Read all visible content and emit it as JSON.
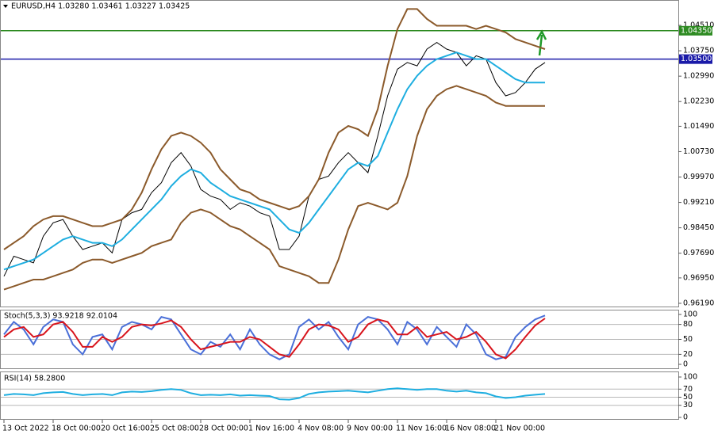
{
  "chart_data": [
    {
      "type": "line",
      "title": "EURUSD,H4  1.03280 1.03461 1.03227 1.03425",
      "categories": [
        "13 Oct 2022",
        null,
        null,
        null,
        null,
        "18 Oct 00:00",
        null,
        null,
        null,
        null,
        "20 Oct 16:00",
        null,
        null,
        null,
        null,
        "25 Oct 08:00",
        null,
        null,
        null,
        null,
        "28 Oct 00:00",
        null,
        null,
        null,
        null,
        "1 Nov 16:00",
        null,
        null,
        null,
        null,
        "4 Nov 08:00",
        null,
        null,
        null,
        null,
        "9 Nov 00:00",
        null,
        null,
        null,
        null,
        "11 Nov 16:00",
        null,
        null,
        null,
        null,
        "16 Nov 08:00",
        null,
        null,
        null,
        null,
        "21 Nov 00:00",
        null,
        null,
        null,
        null,
        null
      ],
      "series": [
        {
          "color": "#000000",
          "values": [
            0.97,
            0.976,
            0.975,
            0.974,
            0.982,
            0.986,
            0.987,
            0.982,
            0.978,
            0.979,
            0.98,
            0.977,
            0.987,
            0.989,
            0.99,
            0.995,
            0.998,
            1.004,
            1.007,
            1.003,
            0.996,
            0.994,
            0.993,
            0.99,
            0.992,
            0.991,
            0.989,
            0.988,
            0.978,
            0.978,
            0.982,
            0.994,
            0.999,
            1.0,
            1.004,
            1.007,
            1.004,
            1.001,
            1.012,
            1.024,
            1.032,
            1.034,
            1.033,
            1.038,
            1.04,
            1.038,
            1.037,
            1.033,
            1.036,
            1.035,
            1.028,
            1.024,
            1.025,
            1.028,
            1.032,
            1.034
          ]
        },
        {
          "color": "#1eaee0",
          "values": [
            0.972,
            0.973,
            0.974,
            0.975,
            0.977,
            0.979,
            0.981,
            0.982,
            0.981,
            0.98,
            0.98,
            0.979,
            0.981,
            0.984,
            0.987,
            0.99,
            0.993,
            0.997,
            1.0,
            1.002,
            1.001,
            0.998,
            0.996,
            0.994,
            0.993,
            0.992,
            0.991,
            0.99,
            0.987,
            0.984,
            0.983,
            0.986,
            0.99,
            0.994,
            0.998,
            1.002,
            1.004,
            1.003,
            1.006,
            1.013,
            1.02,
            1.026,
            1.03,
            1.033,
            1.035,
            1.036,
            1.037,
            1.036,
            1.035,
            1.035,
            1.033,
            1.031,
            1.029,
            1.028,
            1.028,
            1.028
          ]
        },
        {
          "color": "#8b5a2b",
          "values": [
            0.978,
            0.98,
            0.982,
            0.985,
            0.987,
            0.988,
            0.988,
            0.987,
            0.986,
            0.985,
            0.985,
            0.986,
            0.987,
            0.99,
            0.995,
            1.002,
            1.008,
            1.012,
            1.013,
            1.012,
            1.01,
            1.007,
            1.002,
            0.999,
            0.996,
            0.995,
            0.993,
            0.992,
            0.991,
            0.99,
            0.991,
            0.994,
            0.999,
            1.007,
            1.013,
            1.015,
            1.014,
            1.012,
            1.02,
            1.033,
            1.044,
            1.05,
            1.05,
            1.047,
            1.045,
            1.045,
            1.045,
            1.045,
            1.044,
            1.045,
            1.044,
            1.043,
            1.041,
            1.04,
            1.039,
            1.038
          ]
        },
        {
          "color": "#8b5a2b",
          "values": [
            0.966,
            0.967,
            0.968,
            0.969,
            0.969,
            0.97,
            0.971,
            0.972,
            0.974,
            0.975,
            0.975,
            0.974,
            0.975,
            0.976,
            0.977,
            0.979,
            0.98,
            0.981,
            0.986,
            0.989,
            0.99,
            0.989,
            0.987,
            0.985,
            0.984,
            0.982,
            0.98,
            0.978,
            0.973,
            0.972,
            0.971,
            0.97,
            0.968,
            0.968,
            0.975,
            0.984,
            0.991,
            0.992,
            0.991,
            0.99,
            0.992,
            1.0,
            1.012,
            1.02,
            1.024,
            1.026,
            1.027,
            1.026,
            1.025,
            1.024,
            1.022,
            1.021,
            1.021,
            1.021,
            1.021,
            1.021
          ]
        }
      ],
      "ylim": [
        0.9607,
        1.0527
      ],
      "yticks": [
        {
          "value": 0.9619,
          "label": "0.96190"
        },
        {
          "value": 0.9695,
          "label": "0.96950"
        },
        {
          "value": 0.9769,
          "label": "0.97690"
        },
        {
          "value": 0.9845,
          "label": "0.98450"
        },
        {
          "value": 0.9921,
          "label": "0.99210"
        },
        {
          "value": 0.9997,
          "label": "0.99970"
        },
        {
          "value": 1.0073,
          "label": "1.00730"
        },
        {
          "value": 1.0149,
          "label": "1.01490"
        },
        {
          "value": 1.0223,
          "label": "1.02230"
        },
        {
          "value": 1.0299,
          "label": "1.02990"
        },
        {
          "value": 1.0375,
          "label": "1.03750"
        },
        {
          "value": 1.0451,
          "label": "1.04510"
        }
      ],
      "levels": [
        {
          "value": 1.0435,
          "label": "1.04350",
          "color": "#2e8b22"
        },
        {
          "value": 1.035,
          "label": "1.03500",
          "color": "#1a1aa8"
        }
      ]
    },
    {
      "type": "line",
      "title": "Stoch(5,3,3) 93.9218 92.0104",
      "series": [
        {
          "color": "#4a6fd8",
          "values": [
            60,
            85,
            70,
            40,
            75,
            90,
            85,
            40,
            20,
            55,
            60,
            30,
            75,
            85,
            80,
            70,
            95,
            90,
            60,
            30,
            20,
            45,
            35,
            60,
            30,
            70,
            40,
            20,
            10,
            20,
            75,
            90,
            70,
            85,
            55,
            30,
            80,
            95,
            90,
            70,
            40,
            85,
            70,
            40,
            75,
            55,
            35,
            80,
            60,
            20,
            10,
            15,
            55,
            75,
            90,
            98
          ]
        },
        {
          "color": "#d8141c",
          "values": [
            55,
            70,
            75,
            55,
            60,
            80,
            85,
            65,
            35,
            35,
            55,
            45,
            55,
            75,
            80,
            78,
            82,
            88,
            75,
            50,
            30,
            35,
            40,
            45,
            45,
            55,
            50,
            35,
            20,
            15,
            40,
            70,
            80,
            78,
            70,
            45,
            55,
            80,
            90,
            85,
            60,
            60,
            75,
            55,
            60,
            65,
            50,
            55,
            65,
            45,
            20,
            12,
            30,
            55,
            78,
            92
          ]
        }
      ],
      "ylim": [
        0,
        100
      ],
      "yticks": [
        0,
        20,
        50,
        80,
        100
      ]
    },
    {
      "type": "line",
      "title": "RSI(14) 58.2800",
      "series": [
        {
          "color": "#1eaee0",
          "values": [
            55,
            58,
            57,
            55,
            60,
            62,
            63,
            58,
            55,
            57,
            58,
            55,
            62,
            64,
            63,
            65,
            68,
            70,
            68,
            60,
            55,
            56,
            55,
            57,
            54,
            55,
            54,
            53,
            45,
            44,
            48,
            58,
            62,
            64,
            65,
            66,
            64,
            62,
            66,
            70,
            72,
            70,
            68,
            70,
            70,
            66,
            64,
            66,
            62,
            60,
            52,
            48,
            50,
            54,
            56,
            58
          ]
        }
      ],
      "ylim": [
        0,
        100
      ],
      "yticks": [
        0,
        30,
        50,
        70,
        100
      ]
    }
  ]
}
